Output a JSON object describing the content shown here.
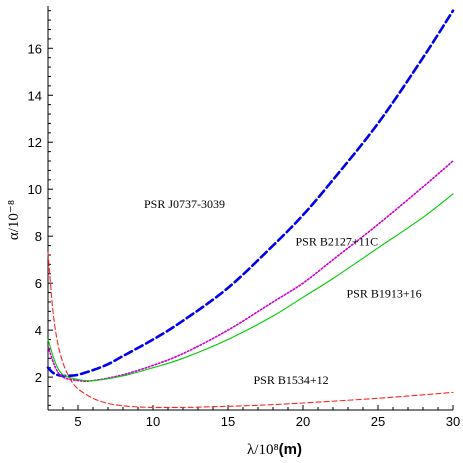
{
  "chart_data": {
    "type": "line",
    "title": "",
    "xlabel": "λ/10⁸(m)",
    "ylabel": "α/10⁻⁸",
    "xlim": [
      3,
      30
    ],
    "ylim": [
      0.6,
      17.8
    ],
    "x_ticks": [
      5,
      10,
      15,
      20,
      25,
      30
    ],
    "y_ticks": [
      2,
      4,
      6,
      8,
      10,
      12,
      14,
      16
    ],
    "grid": false,
    "legend": "inline labels",
    "series": [
      {
        "name": "PSR J0737-3039",
        "color": "#0000ee",
        "dash": "dashed-thick",
        "x": [
          3,
          3.3,
          3.6,
          4,
          4.5,
          5,
          6,
          7,
          8,
          10,
          12,
          15,
          18,
          20,
          22,
          25,
          28,
          30
        ],
        "y": [
          2.4,
          2.2,
          2.1,
          2.05,
          2.06,
          2.1,
          2.3,
          2.55,
          2.9,
          3.6,
          4.4,
          5.8,
          7.6,
          8.9,
          10.4,
          12.8,
          15.6,
          17.6
        ]
      },
      {
        "name": "PSR B2127+11C",
        "color": "#cc00cc",
        "dash": "dotted",
        "x": [
          3,
          3.5,
          4,
          5,
          6,
          8,
          10,
          12,
          15,
          18,
          20,
          22,
          25,
          28,
          30
        ],
        "y": [
          3.3,
          2.4,
          2.0,
          1.85,
          1.85,
          2.1,
          2.5,
          3.0,
          4.0,
          5.2,
          6.0,
          7.0,
          8.5,
          10.1,
          11.2
        ]
      },
      {
        "name": "PSR B1913+16",
        "color": "#00cc00",
        "dash": "solid",
        "x": [
          3,
          3.5,
          4,
          5,
          6,
          8,
          10,
          12,
          15,
          18,
          20,
          22,
          25,
          28,
          30
        ],
        "y": [
          3.6,
          2.6,
          2.1,
          1.9,
          1.85,
          2.05,
          2.4,
          2.8,
          3.6,
          4.6,
          5.4,
          6.2,
          7.5,
          8.8,
          9.8
        ]
      },
      {
        "name": "PSR B1534+12",
        "color": "#ff2222",
        "dash": "dashed-thin",
        "x": [
          3,
          3.3,
          3.6,
          4,
          4.5,
          5,
          6,
          7,
          8,
          9,
          10,
          12,
          14,
          17,
          20,
          25,
          30
        ],
        "y": [
          7.3,
          5.0,
          3.6,
          2.6,
          1.9,
          1.5,
          1.1,
          0.88,
          0.78,
          0.73,
          0.71,
          0.71,
          0.74,
          0.8,
          0.9,
          1.1,
          1.35
        ]
      }
    ],
    "labels": [
      {
        "text": "PSR J0737-3039",
        "x": 9.4,
        "y": 9.2
      },
      {
        "text": "PSR B2127+11C",
        "x": 19.5,
        "y": 7.6
      },
      {
        "text": "PSR B1913+16",
        "x": 22.9,
        "y": 5.4
      },
      {
        "text": "PSR B1534+12",
        "x": 16.7,
        "y": 1.7
      }
    ]
  }
}
